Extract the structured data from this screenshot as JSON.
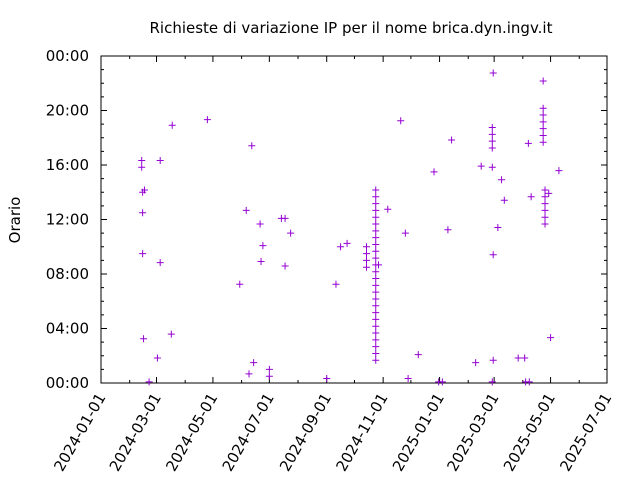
{
  "chart_data": {
    "type": "scatter",
    "title": "Richieste di variazione IP per il nome brica.dyn.ingv.it",
    "xlabel": "",
    "ylabel": "Orario",
    "x_ticks": [
      "2024-01-01",
      "2024-03-01",
      "2024-05-01",
      "2024-07-01",
      "2024-09-01",
      "2024-11-01",
      "2025-01-01",
      "2025-03-01",
      "2025-05-01",
      "2025-07-01"
    ],
    "y_ticks": [
      "00:00",
      "04:00",
      "08:00",
      "12:00",
      "16:00",
      "20:00",
      "00:00"
    ],
    "xlim": [
      "2024-01-01",
      "2025-07-01"
    ],
    "ylim_hours": [
      0,
      24
    ],
    "grid": false,
    "marker": "+",
    "color": "#9400d3",
    "points": [
      {
        "x": "2024-02-14",
        "y": "16:20"
      },
      {
        "x": "2024-02-14",
        "y": "15:50"
      },
      {
        "x": "2024-02-15",
        "y": "14:00"
      },
      {
        "x": "2024-02-17",
        "y": "14:10"
      },
      {
        "x": "2024-02-15",
        "y": "12:30"
      },
      {
        "x": "2024-02-15",
        "y": "09:30"
      },
      {
        "x": "2024-02-16",
        "y": "03:15"
      },
      {
        "x": "2024-02-22",
        "y": "00:05"
      },
      {
        "x": "2024-03-05",
        "y": "16:20"
      },
      {
        "x": "2024-03-05",
        "y": "08:50"
      },
      {
        "x": "2024-03-02",
        "y": "01:50"
      },
      {
        "x": "2024-03-18",
        "y": "18:55"
      },
      {
        "x": "2024-03-17",
        "y": "03:35"
      },
      {
        "x": "2024-04-25",
        "y": "19:20"
      },
      {
        "x": "2024-05-30",
        "y": "07:15"
      },
      {
        "x": "2024-06-06",
        "y": "12:40"
      },
      {
        "x": "2024-06-12",
        "y": "17:25"
      },
      {
        "x": "2024-06-09",
        "y": "00:40"
      },
      {
        "x": "2024-06-14",
        "y": "01:30"
      },
      {
        "x": "2024-06-21",
        "y": "11:40"
      },
      {
        "x": "2024-06-22",
        "y": "08:55"
      },
      {
        "x": "2024-06-24",
        "y": "10:05"
      },
      {
        "x": "2024-07-01",
        "y": "01:00"
      },
      {
        "x": "2024-07-01",
        "y": "00:30"
      },
      {
        "x": "2024-07-14",
        "y": "12:05"
      },
      {
        "x": "2024-07-18",
        "y": "12:05"
      },
      {
        "x": "2024-07-18",
        "y": "08:35"
      },
      {
        "x": "2024-07-24",
        "y": "11:00"
      },
      {
        "x": "2024-09-01",
        "y": "00:20"
      },
      {
        "x": "2024-09-11",
        "y": "07:15"
      },
      {
        "x": "2024-09-16",
        "y": "10:00"
      },
      {
        "x": "2024-09-23",
        "y": "10:15"
      },
      {
        "x": "2024-10-14",
        "y": "10:00"
      },
      {
        "x": "2024-10-14",
        "y": "09:30"
      },
      {
        "x": "2024-10-14",
        "y": "09:00"
      },
      {
        "x": "2024-10-14",
        "y": "08:30"
      },
      {
        "x": "2024-10-24",
        "y": "14:10"
      },
      {
        "x": "2024-10-24",
        "y": "13:40"
      },
      {
        "x": "2024-10-24",
        "y": "13:10"
      },
      {
        "x": "2024-10-24",
        "y": "12:40"
      },
      {
        "x": "2024-10-24",
        "y": "12:10"
      },
      {
        "x": "2024-10-24",
        "y": "11:40"
      },
      {
        "x": "2024-10-24",
        "y": "11:10"
      },
      {
        "x": "2024-10-24",
        "y": "10:40"
      },
      {
        "x": "2024-10-24",
        "y": "10:10"
      },
      {
        "x": "2024-10-24",
        "y": "09:40"
      },
      {
        "x": "2024-10-24",
        "y": "09:10"
      },
      {
        "x": "2024-10-24",
        "y": "08:40"
      },
      {
        "x": "2024-10-24",
        "y": "08:10"
      },
      {
        "x": "2024-10-24",
        "y": "07:40"
      },
      {
        "x": "2024-10-24",
        "y": "07:10"
      },
      {
        "x": "2024-10-24",
        "y": "06:40"
      },
      {
        "x": "2024-10-24",
        "y": "06:10"
      },
      {
        "x": "2024-10-24",
        "y": "05:40"
      },
      {
        "x": "2024-10-24",
        "y": "05:10"
      },
      {
        "x": "2024-10-24",
        "y": "04:40"
      },
      {
        "x": "2024-10-24",
        "y": "04:10"
      },
      {
        "x": "2024-10-24",
        "y": "03:40"
      },
      {
        "x": "2024-10-24",
        "y": "03:10"
      },
      {
        "x": "2024-10-24",
        "y": "02:40"
      },
      {
        "x": "2024-10-24",
        "y": "02:10"
      },
      {
        "x": "2024-10-24",
        "y": "01:40"
      },
      {
        "x": "2024-10-27",
        "y": "08:40"
      },
      {
        "x": "2024-11-06",
        "y": "12:45"
      },
      {
        "x": "2024-11-20",
        "y": "19:15"
      },
      {
        "x": "2024-11-25",
        "y": "11:00"
      },
      {
        "x": "2024-11-28",
        "y": "00:20"
      },
      {
        "x": "2024-12-09",
        "y": "02:05"
      },
      {
        "x": "2024-12-26",
        "y": "15:30"
      },
      {
        "x": "2024-12-31",
        "y": "00:05"
      },
      {
        "x": "2025-01-04",
        "y": "00:05"
      },
      {
        "x": "2025-01-10",
        "y": "11:15"
      },
      {
        "x": "2025-01-14",
        "y": "17:50"
      },
      {
        "x": "2025-02-09",
        "y": "01:30"
      },
      {
        "x": "2025-02-15",
        "y": "15:55"
      },
      {
        "x": "2025-02-28",
        "y": "22:45"
      },
      {
        "x": "2025-02-27",
        "y": "18:45"
      },
      {
        "x": "2025-02-27",
        "y": "18:15"
      },
      {
        "x": "2025-02-27",
        "y": "17:45"
      },
      {
        "x": "2025-02-27",
        "y": "17:15"
      },
      {
        "x": "2025-02-27",
        "y": "15:50"
      },
      {
        "x": "2025-02-28",
        "y": "09:25"
      },
      {
        "x": "2025-02-28",
        "y": "01:40"
      },
      {
        "x": "2025-02-27",
        "y": "00:05"
      },
      {
        "x": "2025-03-05",
        "y": "11:25"
      },
      {
        "x": "2025-03-09",
        "y": "14:55"
      },
      {
        "x": "2025-03-12",
        "y": "13:25"
      },
      {
        "x": "2025-03-27",
        "y": "01:50"
      },
      {
        "x": "2025-04-03",
        "y": "01:50"
      },
      {
        "x": "2025-04-04",
        "y": "00:05"
      },
      {
        "x": "2025-04-08",
        "y": "00:05"
      },
      {
        "x": "2025-04-07",
        "y": "17:35"
      },
      {
        "x": "2025-04-10",
        "y": "13:40"
      },
      {
        "x": "2025-04-23",
        "y": "22:10"
      },
      {
        "x": "2025-04-23",
        "y": "20:10"
      },
      {
        "x": "2025-04-23",
        "y": "19:40"
      },
      {
        "x": "2025-04-23",
        "y": "19:10"
      },
      {
        "x": "2025-04-23",
        "y": "18:40"
      },
      {
        "x": "2025-04-23",
        "y": "18:10"
      },
      {
        "x": "2025-04-23",
        "y": "17:40"
      },
      {
        "x": "2025-04-25",
        "y": "14:10"
      },
      {
        "x": "2025-04-25",
        "y": "13:40"
      },
      {
        "x": "2025-04-25",
        "y": "13:10"
      },
      {
        "x": "2025-04-25",
        "y": "12:40"
      },
      {
        "x": "2025-04-25",
        "y": "12:10"
      },
      {
        "x": "2025-04-25",
        "y": "11:40"
      },
      {
        "x": "2025-04-29",
        "y": "13:55"
      },
      {
        "x": "2025-05-01",
        "y": "03:20"
      },
      {
        "x": "2025-05-10",
        "y": "15:35"
      }
    ]
  }
}
